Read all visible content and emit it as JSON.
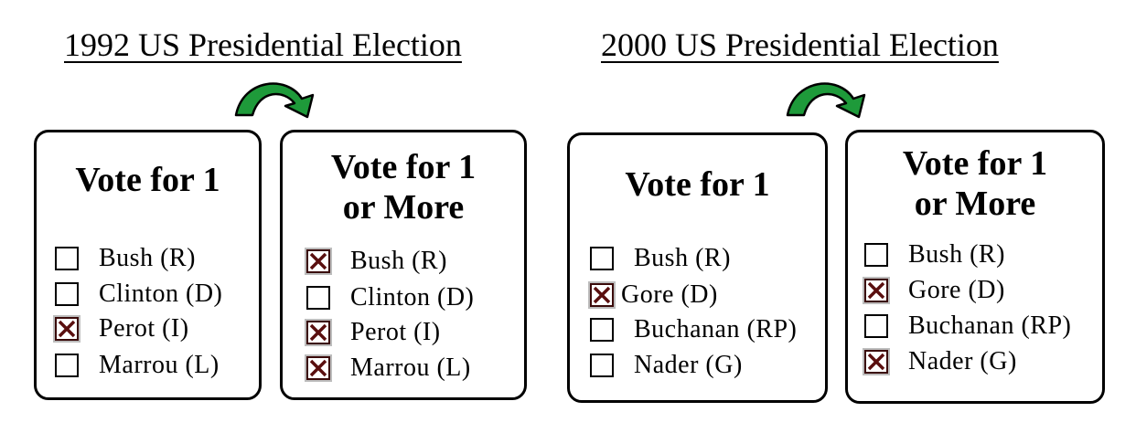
{
  "elections": [
    {
      "title": "1992 US Presidential Election",
      "ballots": [
        {
          "title": "Vote for 1",
          "options": [
            {
              "label": "Bush (R)",
              "checked": false
            },
            {
              "label": "Clinton (D)",
              "checked": false
            },
            {
              "label": "Perot (I)",
              "checked": true
            },
            {
              "label": "Marrou (L)",
              "checked": false
            }
          ]
        },
        {
          "title": "Vote for 1\nor More",
          "options": [
            {
              "label": "Bush (R)",
              "checked": true
            },
            {
              "label": "Clinton (D)",
              "checked": false
            },
            {
              "label": "Perot (I)",
              "checked": true
            },
            {
              "label": "Marrou (L)",
              "checked": true
            }
          ]
        }
      ]
    },
    {
      "title": "2000 US Presidential Election",
      "ballots": [
        {
          "title": "Vote for 1",
          "options": [
            {
              "label": "Bush (R)",
              "checked": false
            },
            {
              "label": "Gore (D)",
              "checked": true
            },
            {
              "label": "Buchanan (RP)",
              "checked": false
            },
            {
              "label": "Nader (G)",
              "checked": false
            }
          ]
        },
        {
          "title": "Vote for 1\nor More",
          "options": [
            {
              "label": "Bush (R)",
              "checked": false
            },
            {
              "label": "Gore (D)",
              "checked": true
            },
            {
              "label": "Buchanan (RP)",
              "checked": false
            },
            {
              "label": "Nader (G)",
              "checked": true
            }
          ]
        }
      ]
    }
  ],
  "colors": {
    "arrow": "#1e9a3a",
    "check_mark": "#5a0f0f"
  },
  "icons": {
    "transition": "curved-arrow-icon",
    "check": "x-mark-icon"
  }
}
